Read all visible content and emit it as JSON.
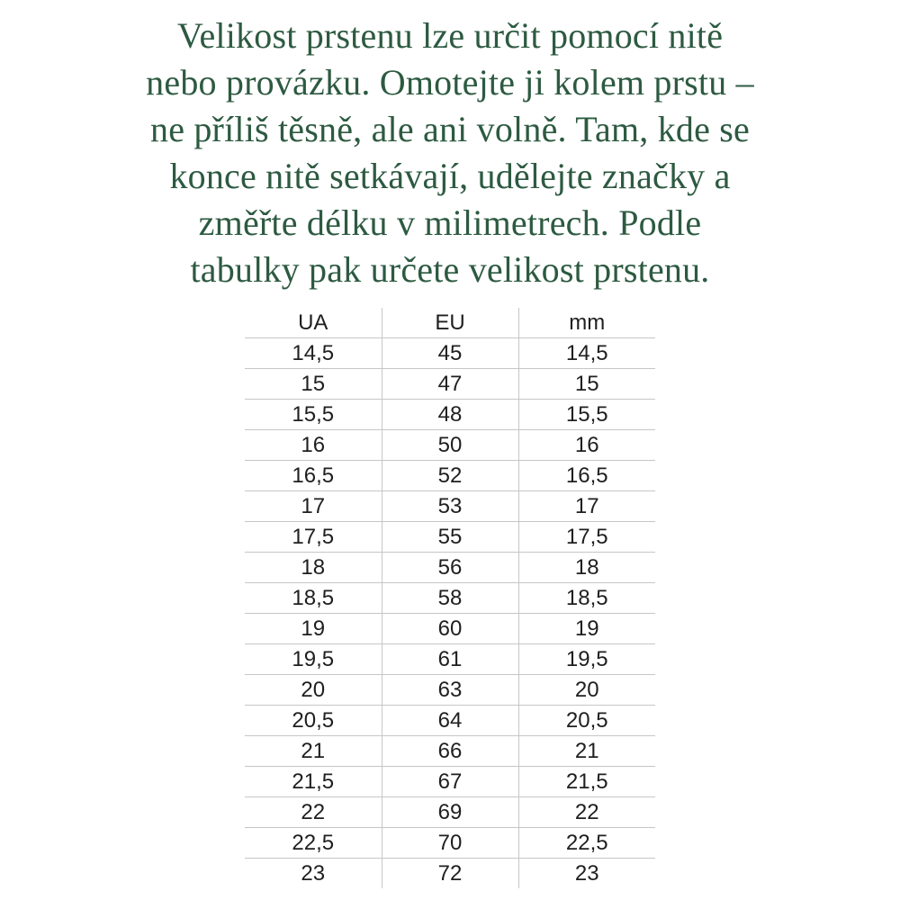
{
  "intro": {
    "lines": [
      "Velikost prstenu lze určit pomocí nitě",
      "nebo provázku. Omotejte ji kolem prstu –",
      "ne příliš těsně, ale ani volně. Tam, kde se",
      "konce nitě setkávají, udělejte značky a",
      "změřte délku v milimetrech. Podle",
      "tabulky pak určete velikost prstenu."
    ],
    "text_color": "#2d5a41"
  },
  "table": {
    "headers": [
      "UA",
      "EU",
      "mm"
    ],
    "rows": [
      [
        "14,5",
        "45",
        "14,5"
      ],
      [
        "15",
        "47",
        "15"
      ],
      [
        "15,5",
        "48",
        "15,5"
      ],
      [
        "16",
        "50",
        "16"
      ],
      [
        "16,5",
        "52",
        "16,5"
      ],
      [
        "17",
        "53",
        "17"
      ],
      [
        "17,5",
        "55",
        "17,5"
      ],
      [
        "18",
        "56",
        "18"
      ],
      [
        "18,5",
        "58",
        "18,5"
      ],
      [
        "19",
        "60",
        "19"
      ],
      [
        "19,5",
        "61",
        "19,5"
      ],
      [
        "20",
        "63",
        "20"
      ],
      [
        "20,5",
        "64",
        "20,5"
      ],
      [
        "21",
        "66",
        "21"
      ],
      [
        "21,5",
        "67",
        "21,5"
      ],
      [
        "22",
        "69",
        "22"
      ],
      [
        "22,5",
        "70",
        "22,5"
      ],
      [
        "23",
        "72",
        "23"
      ]
    ],
    "line_color": "#c6c6c6",
    "text_color": "#1f1f1f"
  }
}
